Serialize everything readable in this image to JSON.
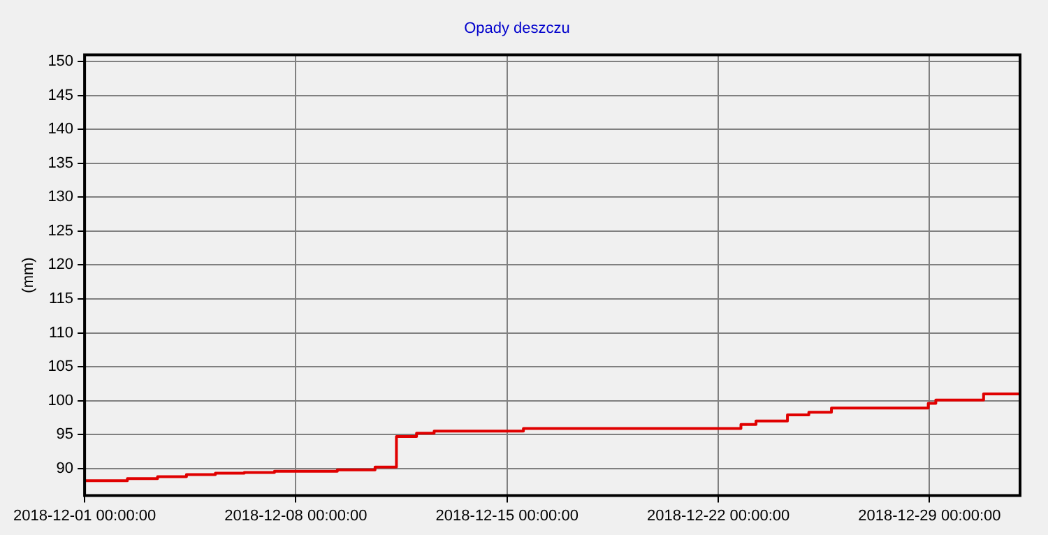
{
  "chart_data": {
    "type": "step",
    "title": "Opady deszczu",
    "ylabel": "(mm)",
    "x": [
      "2018-12-01T00:00",
      "2018-12-02T10:00",
      "2018-12-03T10:00",
      "2018-12-04T09:00",
      "2018-12-05T08:00",
      "2018-12-06T07:00",
      "2018-12-07T07:00",
      "2018-12-09T09:00",
      "2018-12-10T15:00",
      "2018-12-11T08:00",
      "2018-12-12T00:00",
      "2018-12-12T14:00",
      "2018-12-15T13:00",
      "2018-12-22T18:00",
      "2018-12-23T06:00",
      "2018-12-24T07:00",
      "2018-12-25T00:00",
      "2018-12-25T18:00",
      "2018-12-28T23:00",
      "2018-12-29T05:00",
      "2018-12-30T19:00",
      "2019-01-01T00:00"
    ],
    "series": [
      {
        "color": "#e00000",
        "values": [
          88.2,
          88.5,
          88.8,
          89.1,
          89.3,
          89.4,
          89.6,
          89.8,
          90.2,
          94.7,
          95.2,
          95.5,
          95.9,
          96.5,
          97.0,
          97.9,
          98.3,
          98.9,
          99.6,
          100.1,
          101.0,
          101.0
        ]
      }
    ],
    "xlim": [
      "2018-12-01T00:00",
      "2019-01-01T00:00"
    ],
    "xticks": [
      {
        "value": "2018-12-01T00:00",
        "label": "2018-12-01 00:00:00"
      },
      {
        "value": "2018-12-08T00:00",
        "label": "2018-12-08 00:00:00"
      },
      {
        "value": "2018-12-15T00:00",
        "label": "2018-12-15 00:00:00"
      },
      {
        "value": "2018-12-22T00:00",
        "label": "2018-12-22 00:00:00"
      },
      {
        "value": "2018-12-29T00:00",
        "label": "2018-12-29 00:00:00"
      }
    ],
    "ylim": [
      86,
      151
    ],
    "yticks": [
      90,
      95,
      100,
      105,
      110,
      115,
      120,
      125,
      130,
      135,
      140,
      145,
      150
    ],
    "grid": true,
    "legend": false,
    "marker": "none",
    "line_style": "solid"
  }
}
